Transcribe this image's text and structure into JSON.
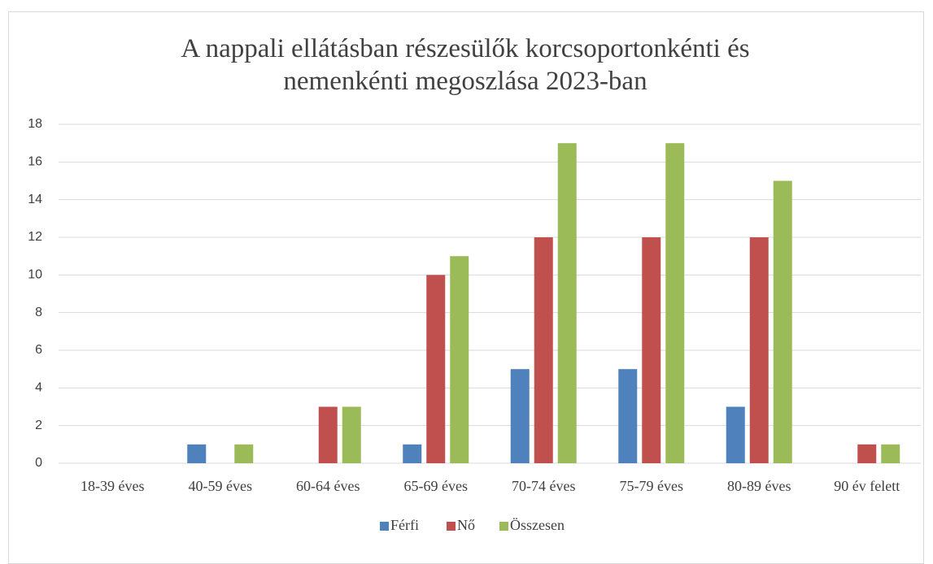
{
  "chart_data": {
    "type": "bar",
    "title": "A nappali ellátásban részesülők korcsoportonkénti és nemenkénti megoszlása 2023-ban",
    "categories": [
      "18-39 éves",
      "40-59 éves",
      "60-64 éves",
      "65-69 éves",
      "70-74 éves",
      "75-79 éves",
      "80-89 éves",
      "90 év felett"
    ],
    "series": [
      {
        "name": "Férfi",
        "color": "#4f81bd",
        "values": [
          0,
          1,
          0,
          1,
          5,
          5,
          3,
          0
        ]
      },
      {
        "name": "Nő",
        "color": "#c0504d",
        "values": [
          0,
          0,
          3,
          10,
          12,
          12,
          12,
          1
        ]
      },
      {
        "name": "Összesen",
        "color": "#9bbb59",
        "values": [
          0,
          1,
          3,
          11,
          17,
          17,
          15,
          1
        ]
      }
    ],
    "ylim": [
      0,
      18
    ],
    "yticks": [
      0,
      2,
      4,
      6,
      8,
      10,
      12,
      14,
      16,
      18
    ],
    "grid": true,
    "legend": "bottom"
  }
}
